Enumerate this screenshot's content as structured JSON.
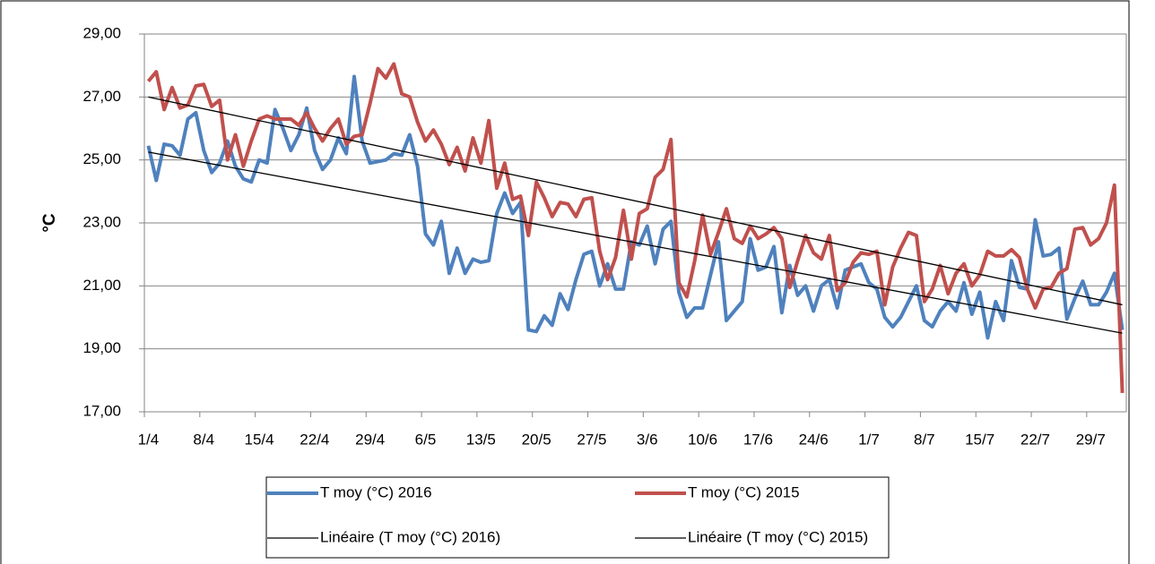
{
  "chart_data": {
    "type": "line",
    "y_label": "°C",
    "categories": [
      "1/4",
      null,
      null,
      null,
      null,
      null,
      null,
      "8/4",
      null,
      null,
      null,
      null,
      null,
      null,
      "15/4",
      null,
      null,
      null,
      null,
      null,
      null,
      "22/4",
      null,
      null,
      null,
      null,
      null,
      null,
      "29/4",
      null,
      null,
      null,
      null,
      null,
      null,
      "6/5",
      null,
      null,
      null,
      null,
      null,
      null,
      "13/5",
      null,
      null,
      null,
      null,
      null,
      null,
      "20/5",
      null,
      null,
      null,
      null,
      null,
      null,
      "27/5",
      null,
      null,
      null,
      null,
      null,
      null,
      "3/6",
      null,
      null,
      null,
      null,
      null,
      null,
      "10/6",
      null,
      null,
      null,
      null,
      null,
      null,
      "17/6",
      null,
      null,
      null,
      null,
      null,
      null,
      "24/6",
      null,
      null,
      null,
      null,
      null,
      null,
      "1/7",
      null,
      null,
      null,
      null,
      null,
      null,
      "8/7",
      null,
      null,
      null,
      null,
      null,
      null,
      "15/7",
      null,
      null,
      null,
      null,
      null,
      null,
      "22/7",
      null,
      null,
      null,
      null,
      null,
      null,
      "29/7",
      null,
      null,
      null,
      null
    ],
    "series": [
      {
        "name": "T moy (°C) 2016",
        "color": "#4f81bd",
        "values": [
          25.45,
          24.35,
          25.5,
          25.45,
          25.15,
          26.3,
          26.5,
          25.3,
          24.6,
          24.9,
          25.6,
          24.8,
          24.4,
          24.3,
          25.0,
          24.9,
          26.6,
          26.0,
          25.3,
          25.8,
          26.65,
          25.3,
          24.7,
          25.0,
          25.7,
          25.2,
          27.65,
          25.6,
          24.9,
          24.95,
          25.0,
          25.2,
          25.15,
          25.8,
          24.8,
          22.65,
          22.3,
          23.05,
          21.4,
          22.2,
          21.4,
          21.85,
          21.75,
          21.8,
          23.3,
          23.95,
          23.3,
          23.65,
          19.6,
          19.55,
          20.05,
          19.75,
          20.75,
          20.25,
          21.2,
          22.0,
          22.1,
          21.0,
          21.7,
          20.9,
          20.9,
          22.4,
          22.3,
          22.9,
          21.7,
          22.8,
          23.05,
          20.8,
          20.0,
          20.3,
          20.3,
          21.35,
          22.4,
          19.9,
          20.2,
          20.5,
          22.5,
          21.5,
          21.6,
          22.25,
          20.15,
          21.65,
          20.7,
          21.0,
          20.2,
          21.0,
          21.2,
          20.3,
          21.5,
          21.6,
          21.7,
          21.1,
          20.9,
          20.0,
          19.7,
          20.0,
          20.5,
          21.0,
          19.9,
          19.7,
          20.2,
          20.5,
          20.2,
          21.1,
          20.1,
          20.8,
          19.35,
          20.5,
          19.9,
          21.8,
          20.95,
          20.9,
          23.1,
          21.95,
          22.0,
          22.2,
          19.95,
          20.6,
          21.15,
          20.4,
          20.4,
          20.8,
          21.4,
          19.6
        ]
      },
      {
        "name": "T moy (°C) 2015",
        "color": "#c0504d",
        "values": [
          27.5,
          27.8,
          26.6,
          27.3,
          26.65,
          26.75,
          27.35,
          27.4,
          26.7,
          26.9,
          25.0,
          25.8,
          24.8,
          25.6,
          26.3,
          26.4,
          26.3,
          26.3,
          26.3,
          26.1,
          26.5,
          26.0,
          25.6,
          26.0,
          26.3,
          25.5,
          25.75,
          25.8,
          26.8,
          27.9,
          27.6,
          28.05,
          27.1,
          27.0,
          26.2,
          25.6,
          25.95,
          25.5,
          24.85,
          25.4,
          24.65,
          25.7,
          24.9,
          26.25,
          24.1,
          24.9,
          23.75,
          23.85,
          22.6,
          24.3,
          23.8,
          23.2,
          23.65,
          23.6,
          23.2,
          23.75,
          23.8,
          22.1,
          21.2,
          21.9,
          23.4,
          21.85,
          23.3,
          23.45,
          24.45,
          24.7,
          25.65,
          21.1,
          20.65,
          21.8,
          23.25,
          22.0,
          22.7,
          23.45,
          22.5,
          22.35,
          22.9,
          22.5,
          22.65,
          22.85,
          22.5,
          20.95,
          21.8,
          22.6,
          22.05,
          21.85,
          22.6,
          20.85,
          21.1,
          21.75,
          22.05,
          22.0,
          22.1,
          20.4,
          21.6,
          22.2,
          22.7,
          22.6,
          20.5,
          20.9,
          21.65,
          20.75,
          21.4,
          21.7,
          21.0,
          21.35,
          22.1,
          21.95,
          21.95,
          22.15,
          21.9,
          20.9,
          20.3,
          20.9,
          20.95,
          21.4,
          21.55,
          22.8,
          22.85,
          22.3,
          22.5,
          23.0,
          24.2,
          17.6
        ]
      }
    ],
    "trendlines": [
      {
        "name": "Linéaire (T moy (°C) 2016)",
        "color": "#000000",
        "start": 25.25,
        "end": 19.5
      },
      {
        "name": "Linéaire (T moy (°C) 2015)",
        "color": "#000000",
        "start": 27.0,
        "end": 20.4
      }
    ],
    "ylim": [
      17,
      29
    ],
    "yticks": [
      {
        "value": 17,
        "label": "17,00"
      },
      {
        "value": 19,
        "label": "19,00"
      },
      {
        "value": 21,
        "label": "21,00"
      },
      {
        "value": 23,
        "label": "23,00"
      },
      {
        "value": 25,
        "label": "25,00"
      },
      {
        "value": 27,
        "label": "27,00"
      },
      {
        "value": 29,
        "label": "29,00"
      }
    ],
    "grid": true
  }
}
